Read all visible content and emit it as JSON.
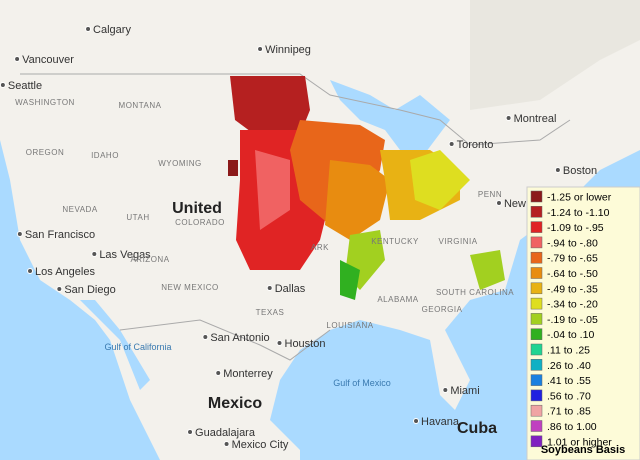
{
  "map": {
    "places": [
      "Calgary",
      "Winnipeg",
      "Vancouver",
      "Seattle",
      "WASHINGTON",
      "MONTANA",
      "OREGON",
      "IDAHO",
      "WYOMING",
      "NEVADA",
      "UTAH",
      "COLORADO",
      "United",
      "San Francisco",
      "Las Vegas",
      "Los Angeles",
      "San Diego",
      "ARIZONA",
      "NEW MEXICO",
      "Dallas",
      "TEXAS",
      "San Antonio",
      "Houston",
      "Monterrey",
      "Mexico",
      "Guadalajara",
      "Mexico City",
      "Gulf of California",
      "Gulf of Mexico",
      "Miami",
      "Havana",
      "Cuba",
      "Montreal",
      "Toronto",
      "Boston",
      "PENN",
      "VIRGINIA",
      "KENTUCKY",
      "ARK",
      "ALABAMA",
      "GEORGIA",
      "SOUTH CAROLINA",
      "LOUISIANA",
      "New"
    ]
  },
  "legend": {
    "title": "Soybeans Basis",
    "items": [
      {
        "label": "-1.25 or lower",
        "color": "#8b1a1a"
      },
      {
        "label": "-1.24 to -1.10",
        "color": "#b52020"
      },
      {
        "label": "-1.09 to -.95",
        "color": "#e02424"
      },
      {
        "label": "-.94 to -.80",
        "color": "#f06262"
      },
      {
        "label": "-.79 to -.65",
        "color": "#e8661a"
      },
      {
        "label": "-.64 to -.50",
        "color": "#e88c10"
      },
      {
        "label": "-.49 to -.35",
        "color": "#e8b214"
      },
      {
        "label": "-.34 to -.20",
        "color": "#dede20"
      },
      {
        "label": "-.19 to -.05",
        "color": "#a2d020"
      },
      {
        "label": "-.04 to .10",
        "color": "#30b020"
      },
      {
        "label": ".11 to .25",
        "color": "#20d492"
      },
      {
        "label": ".26 to .40",
        "color": "#10b0c4"
      },
      {
        "label": ".41 to .55",
        "color": "#1a80e0"
      },
      {
        "label": ".56 to .70",
        "color": "#2020e0"
      },
      {
        "label": ".71 to .85",
        "color": "#f0a4a4"
      },
      {
        "label": ".86 to 1.00",
        "color": "#c040c0"
      },
      {
        "label": "1.01 or higher",
        "color": "#8020c0"
      }
    ]
  }
}
